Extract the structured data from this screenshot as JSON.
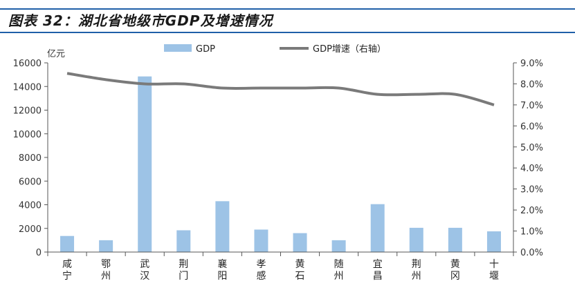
{
  "title": "图表 32：湖北省地级市GDP及增速情况",
  "colors": {
    "bar": "#9dc3e6",
    "line": "#7a7a7a",
    "rule": "#1f5fa8"
  },
  "chart_data": {
    "type": "bar",
    "categories": [
      "咸宁",
      "鄂州",
      "武汉",
      "荆门",
      "襄阳",
      "孝感",
      "黄石",
      "随州",
      "宜昌",
      "荆州",
      "黄冈",
      "十堰"
    ],
    "series": [
      {
        "name": "GDP",
        "type": "bar",
        "axis": "left",
        "values": [
          1360,
          1000,
          14850,
          1840,
          4300,
          1900,
          1600,
          1000,
          4050,
          2050,
          2050,
          1750
        ]
      },
      {
        "name": "GDP增速（右轴）",
        "type": "line",
        "axis": "right",
        "values": [
          8.5,
          8.2,
          8.0,
          8.0,
          7.8,
          7.8,
          7.8,
          7.8,
          7.5,
          7.5,
          7.5,
          7.0
        ]
      }
    ],
    "left_axis": {
      "label": "亿元",
      "min": 0,
      "max": 16000,
      "step": 2000,
      "ticks": [
        "0",
        "2000",
        "4000",
        "6000",
        "8000",
        "10000",
        "12000",
        "14000",
        "16000"
      ]
    },
    "right_axis": {
      "min": 0,
      "max": 9,
      "step": 1,
      "ticks": [
        "0.0%",
        "1.0%",
        "2.0%",
        "3.0%",
        "4.0%",
        "5.0%",
        "6.0%",
        "7.0%",
        "8.0%",
        "9.0%"
      ]
    },
    "legend": {
      "position": "top"
    },
    "grid": false
  }
}
